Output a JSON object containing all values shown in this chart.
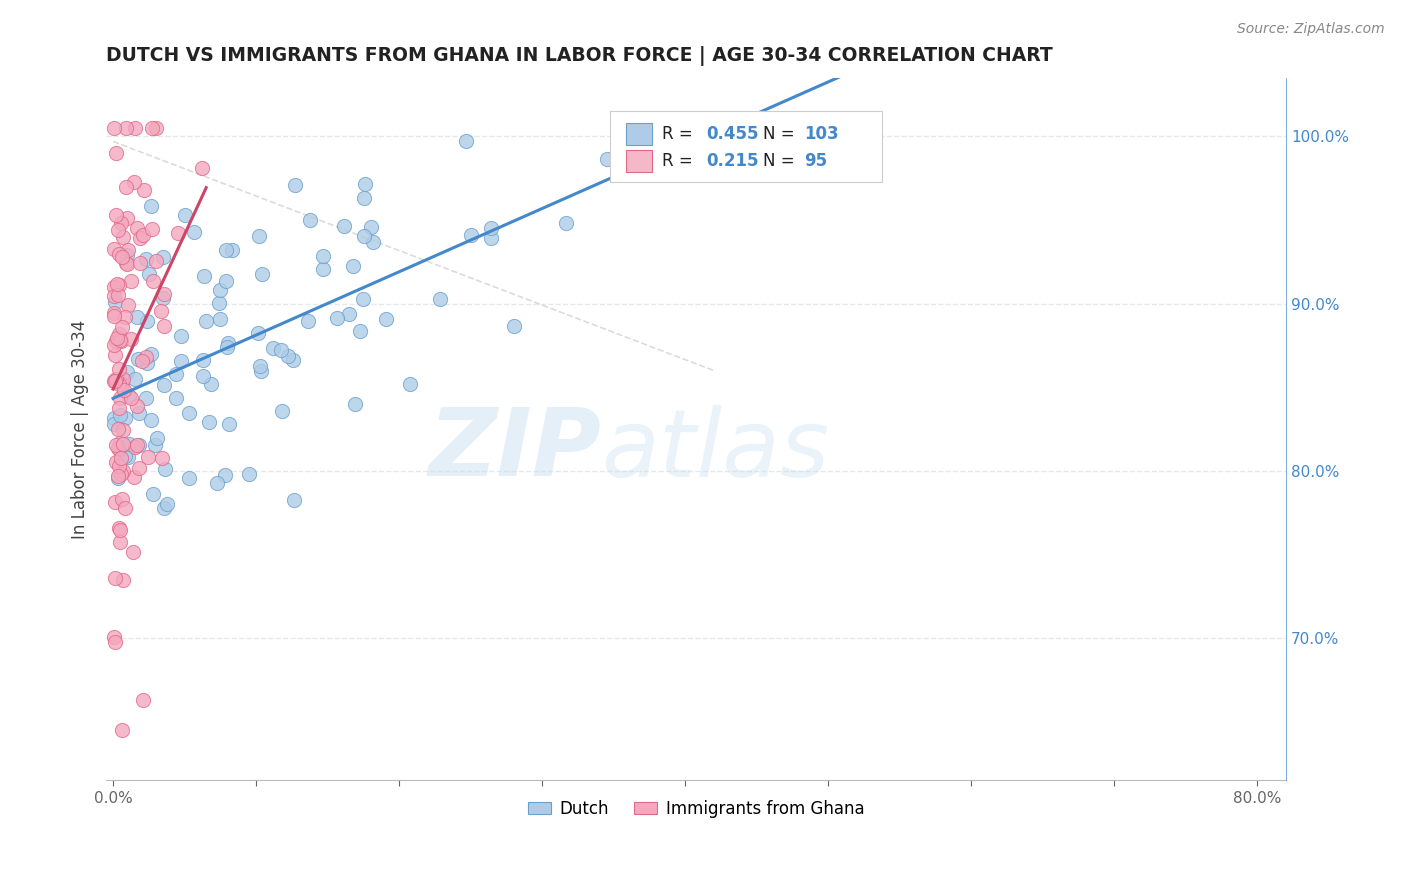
{
  "title": "DUTCH VS IMMIGRANTS FROM GHANA IN LABOR FORCE | AGE 30-34 CORRELATION CHART",
  "source": "Source: ZipAtlas.com",
  "ylabel": "In Labor Force | Age 30-34",
  "xlim": [
    -0.005,
    0.82
  ],
  "ylim": [
    0.615,
    1.035
  ],
  "xticks": [
    0.0,
    0.1,
    0.2,
    0.3,
    0.4,
    0.5,
    0.6,
    0.7,
    0.8
  ],
  "xticklabels": [
    "0.0%",
    "",
    "",
    "",
    "",
    "",
    "",
    "",
    "80.0%"
  ],
  "yticks_right": [
    0.7,
    0.8,
    0.9,
    1.0
  ],
  "yticklabels_right": [
    "70.0%",
    "80.0%",
    "90.0%",
    "100.0%"
  ],
  "R_dutch": 0.455,
  "N_dutch": 103,
  "R_ghana": 0.215,
  "N_ghana": 95,
  "dutch_color": "#aecce8",
  "ghana_color": "#f4a8be",
  "dutch_edge_color": "#6aa0cc",
  "ghana_edge_color": "#e06888",
  "trendline_dutch_color": "#4488cc",
  "trendline_ghana_color": "#cc4466",
  "legend_dutch_color": "#aecce8",
  "legend_ghana_color": "#f4b8c8",
  "watermark_zip": "ZIP",
  "watermark_atlas": "atlas",
  "diag_line_color": "#dddddd",
  "grid_color": "#e8e8e8",
  "grid_style": "--"
}
